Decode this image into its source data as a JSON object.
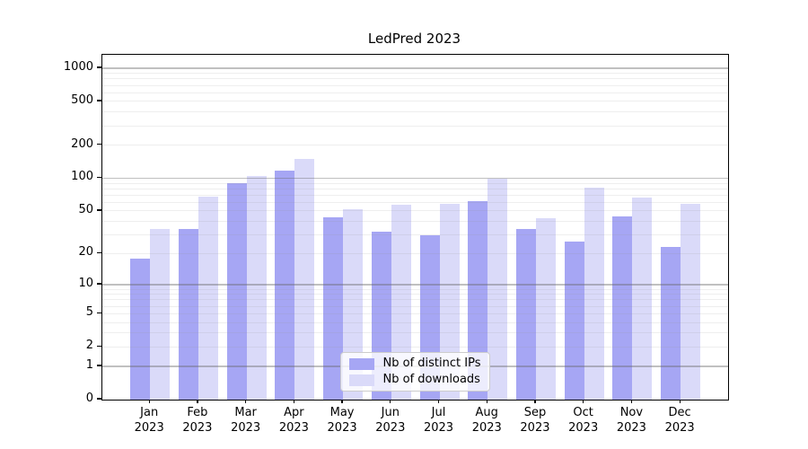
{
  "title": "LedPred 2023",
  "chart_data": {
    "type": "bar",
    "title": "LedPred 2023",
    "categories": [
      "Jan",
      "Feb",
      "Mar",
      "Apr",
      "May",
      "Jun",
      "Jul",
      "Aug",
      "Sep",
      "Oct",
      "Nov",
      "Dec"
    ],
    "x_tick_year": "2023",
    "series": [
      {
        "name": "Nb of distinct IPs",
        "color": "#a6a6f4",
        "values": [
          18,
          34,
          90,
          118,
          44,
          32,
          30,
          62,
          34,
          26,
          45,
          23
        ]
      },
      {
        "name": "Nb of downloads",
        "color": "#dadaf9",
        "values": [
          34,
          68,
          105,
          150,
          52,
          57,
          58,
          100,
          43,
          82,
          66,
          58
        ]
      }
    ],
    "scale": "log10(value+1)",
    "ylim": [
      0,
      1324
    ],
    "y_ticks": [
      0,
      1,
      2,
      5,
      10,
      20,
      50,
      100,
      200,
      500,
      1000
    ],
    "gridlines_major": [
      1,
      10,
      100,
      1000
    ],
    "gridlines_minor": [
      2,
      3,
      4,
      5,
      6,
      7,
      8,
      9,
      20,
      30,
      40,
      50,
      60,
      70,
      80,
      90,
      200,
      300,
      400,
      500,
      600,
      700,
      800,
      900
    ],
    "grid": true,
    "legend_position": "lower center",
    "xlabel": "",
    "ylabel": ""
  }
}
